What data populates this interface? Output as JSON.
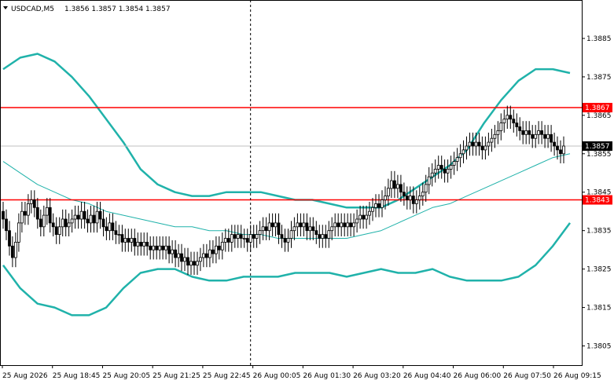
{
  "header": {
    "symbol": "USDCAD,M5",
    "ohlc": "1.3856 1.3857 1.3854 1.3857"
  },
  "colors": {
    "background": "#ffffff",
    "frame": "#000000",
    "candle": "#000000",
    "band": "#20b2aa",
    "middle_band": "#20b2aa",
    "level": "#ff0000",
    "price_line": "#c0c0c0",
    "current_price_bg": "#000000",
    "current_price_text": "#ffffff",
    "level_label_text": "#ffffff"
  },
  "chart_data": {
    "type": "candlestick",
    "symbol": "USDCAD",
    "timeframe": "M5",
    "ylim": [
      1.38,
      1.3895
    ],
    "y_ticks": [
      "1.3885",
      "1.3875",
      "1.3865",
      "1.3855",
      "1.3845",
      "1.3835",
      "1.3825",
      "1.3815",
      "1.3805"
    ],
    "x_ticks": [
      "25 Aug 2026",
      "25 Aug 18:45",
      "25 Aug 20:05",
      "25 Aug 21:25",
      "25 Aug 22:45",
      "26 Aug 00:05",
      "26 Aug 01:30",
      "26 Aug 03:20",
      "26 Aug 04:40",
      "26 Aug 06:00",
      "26 Aug 07:50",
      "26 Aug 09:15"
    ],
    "horizontal_levels": [
      {
        "label": "1.3867",
        "value": 1.3867
      },
      {
        "label": "1.3843",
        "value": 1.3843
      }
    ],
    "current_price": {
      "label": "1.3857",
      "value": 1.3857
    },
    "separator_bar_index": 79,
    "closes": [
      1.3838,
      1.3835,
      1.3831,
      1.3828,
      1.3832,
      1.3837,
      1.384,
      1.3839,
      1.3842,
      1.3843,
      1.3841,
      1.3838,
      1.3836,
      1.3839,
      1.3841,
      1.3837,
      1.3836,
      1.3834,
      1.3836,
      1.3838,
      1.3836,
      1.3837,
      1.3838,
      1.3839,
      1.3838,
      1.384,
      1.3838,
      1.3837,
      1.3839,
      1.3837,
      1.384,
      1.3838,
      1.3836,
      1.3835,
      1.3837,
      1.3835,
      1.3834,
      1.3834,
      1.3832,
      1.3833,
      1.3832,
      1.3833,
      1.3831,
      1.3832,
      1.3831,
      1.3832,
      1.3831,
      1.383,
      1.3831,
      1.383,
      1.3831,
      1.383,
      1.3831,
      1.3829,
      1.383,
      1.3828,
      1.3829,
      1.3827,
      1.3828,
      1.3826,
      1.3827,
      1.3826,
      1.3827,
      1.3828,
      1.3829,
      1.3828,
      1.383,
      1.3829,
      1.3831,
      1.383,
      1.3832,
      1.3833,
      1.3832,
      1.3834,
      1.3833,
      1.3834,
      1.3833,
      1.3833,
      1.3832,
      1.3834,
      1.3833,
      1.3834,
      1.3835,
      1.3836,
      1.3835,
      1.3837,
      1.3836,
      1.3837,
      1.3834,
      1.3833,
      1.3832,
      1.3833,
      1.3835,
      1.3836,
      1.3837,
      1.3836,
      1.3837,
      1.3835,
      1.3836,
      1.3835,
      1.3834,
      1.3833,
      1.3834,
      1.3833,
      1.3835,
      1.3836,
      1.3837,
      1.3836,
      1.3837,
      1.3836,
      1.3837,
      1.3836,
      1.3837,
      1.3838,
      1.3839,
      1.3838,
      1.3839,
      1.384,
      1.3841,
      1.3842,
      1.3841,
      1.3843,
      1.3844,
      1.3846,
      1.3848,
      1.3846,
      1.3847,
      1.3845,
      1.3844,
      1.3843,
      1.3844,
      1.3842,
      1.3843,
      1.3844,
      1.3845,
      1.3847,
      1.3849,
      1.385,
      1.3851,
      1.3852,
      1.3851,
      1.385,
      1.3851,
      1.3852,
      1.3853,
      1.3854,
      1.3855,
      1.3856,
      1.3857,
      1.3858,
      1.3857,
      1.3858,
      1.3857,
      1.3856,
      1.3857,
      1.3858,
      1.3859,
      1.386,
      1.3861,
      1.3863,
      1.3864,
      1.3865,
      1.3864,
      1.3863,
      1.3862,
      1.3861,
      1.386,
      1.3861,
      1.386,
      1.3859,
      1.386,
      1.3861,
      1.386,
      1.3859,
      1.386,
      1.3858,
      1.3857,
      1.3856,
      1.3855,
      1.3857
    ],
    "indicators": {
      "upper_band": [
        1.3877,
        1.388,
        1.3881,
        1.3879,
        1.3875,
        1.387,
        1.3864,
        1.3858,
        1.3851,
        1.3847,
        1.3845,
        1.3844,
        1.3844,
        1.3845,
        1.3845,
        1.3845,
        1.3844,
        1.3843,
        1.3843,
        1.3842,
        1.3841,
        1.3841,
        1.3841,
        1.3843,
        1.3846,
        1.3849,
        1.3852,
        1.3856,
        1.3863,
        1.3869,
        1.3874,
        1.3877,
        1.3877,
        1.3876
      ],
      "middle_band": [
        1.3853,
        1.385,
        1.3847,
        1.3845,
        1.3843,
        1.3842,
        1.384,
        1.3839,
        1.3838,
        1.3837,
        1.3836,
        1.3836,
        1.3835,
        1.3835,
        1.3834,
        1.3834,
        1.3833,
        1.3833,
        1.3833,
        1.3833,
        1.3833,
        1.3834,
        1.3835,
        1.3837,
        1.3839,
        1.3841,
        1.3842,
        1.3844,
        1.3846,
        1.3848,
        1.385,
        1.3852,
        1.3854,
        1.3855
      ],
      "lower_band": [
        1.3826,
        1.382,
        1.3816,
        1.3815,
        1.3813,
        1.3813,
        1.3815,
        1.382,
        1.3824,
        1.3825,
        1.3825,
        1.3823,
        1.3822,
        1.3822,
        1.3823,
        1.3823,
        1.3823,
        1.3824,
        1.3824,
        1.3824,
        1.3823,
        1.3824,
        1.3825,
        1.3824,
        1.3824,
        1.3825,
        1.3823,
        1.3822,
        1.3822,
        1.3822,
        1.3823,
        1.3826,
        1.3831,
        1.3837
      ]
    }
  }
}
